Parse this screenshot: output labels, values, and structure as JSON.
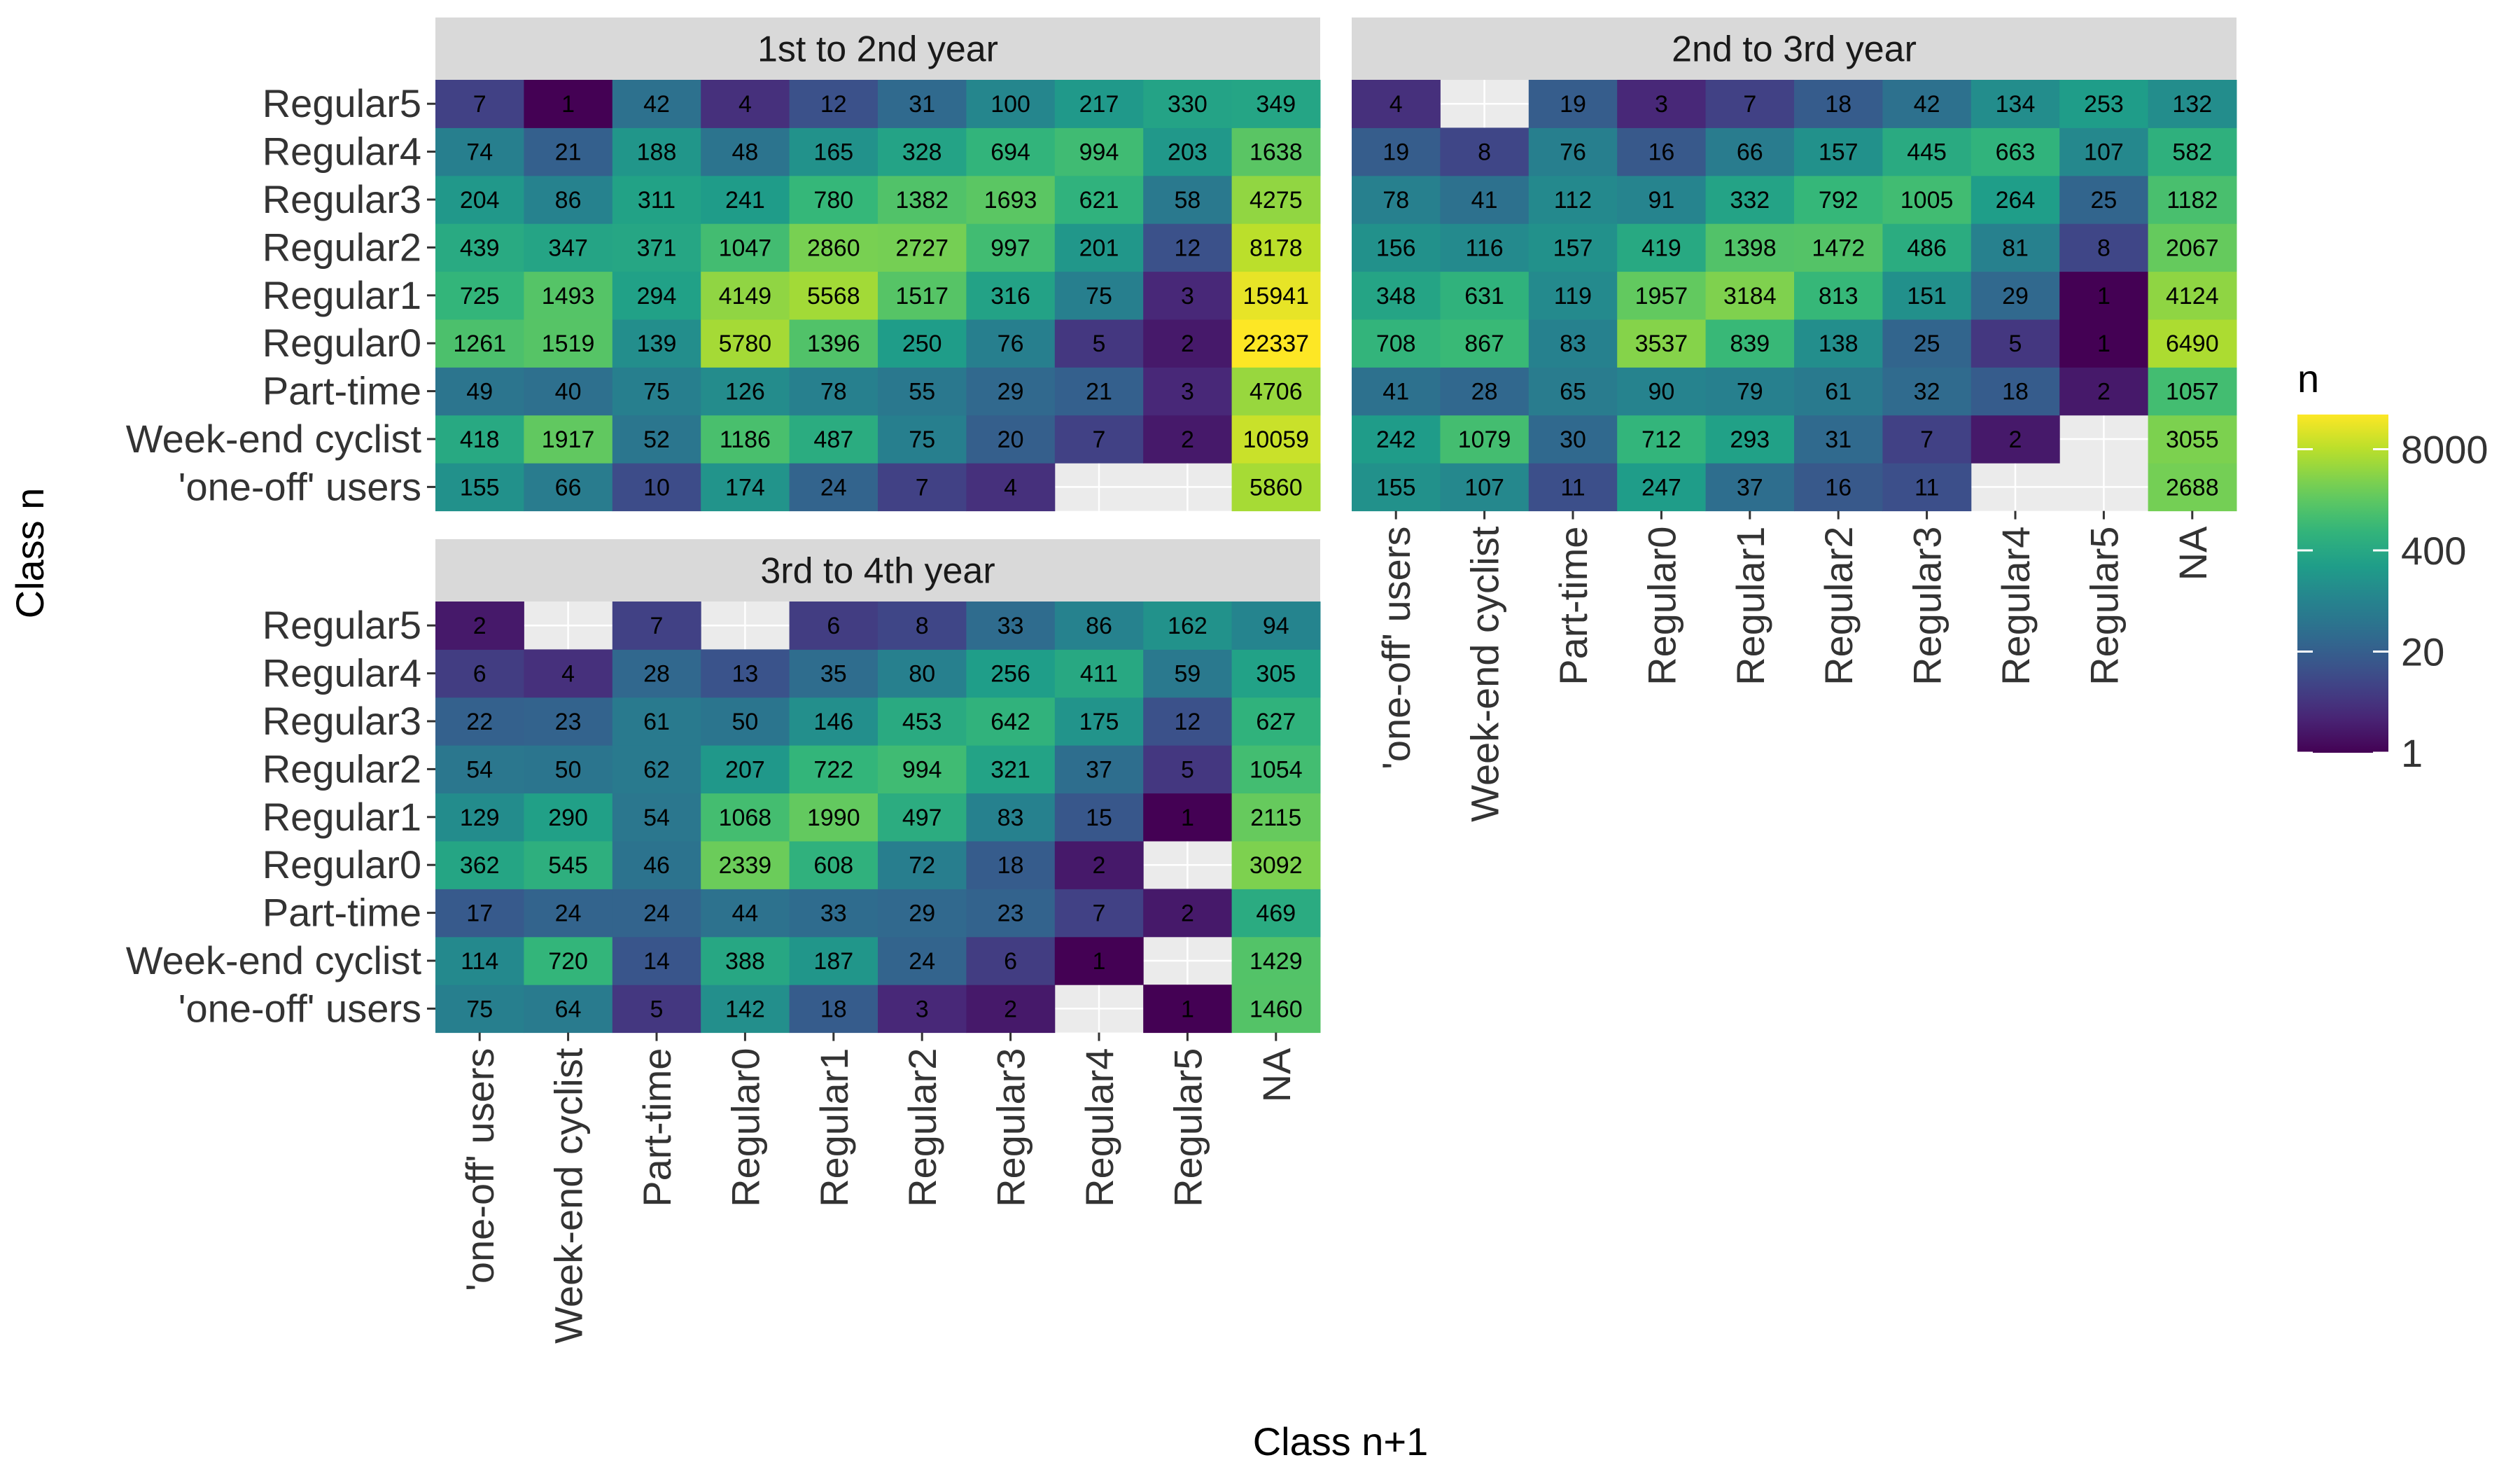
{
  "chart_data": {
    "type": "heatmap",
    "xlabel": "Class n+1",
    "ylabel": "Class n",
    "x_categories": [
      "'one-off' users",
      "Week-end cyclist",
      "Part-time",
      "Regular0",
      "Regular1",
      "Regular2",
      "Regular3",
      "Regular4",
      "Regular5",
      "NA"
    ],
    "y_categories": [
      "'one-off' users",
      "Week-end cyclist",
      "Part-time",
      "Regular0",
      "Regular1",
      "Regular2",
      "Regular3",
      "Regular4",
      "Regular5"
    ],
    "legend": {
      "title": "n",
      "scale": "log10",
      "breaks": [
        1,
        20,
        400,
        8000
      ],
      "break_labels": [
        "1",
        "20",
        "400",
        "8000"
      ],
      "range": [
        1,
        22337
      ],
      "colors": [
        "#440154",
        "#482878",
        "#3E4A89",
        "#31688E",
        "#26828E",
        "#1F9E89",
        "#35B779",
        "#6DCD59",
        "#B4DE2C",
        "#FDE725"
      ]
    },
    "panels": [
      {
        "title": "1st to 2nd year",
        "rows": [
          [
            155,
            66,
            10,
            174,
            24,
            7,
            4,
            null,
            null,
            5860
          ],
          [
            418,
            1917,
            52,
            1186,
            487,
            75,
            20,
            7,
            2,
            10059
          ],
          [
            49,
            40,
            75,
            126,
            78,
            55,
            29,
            21,
            3,
            4706
          ],
          [
            1261,
            1519,
            139,
            5780,
            1396,
            250,
            76,
            5,
            2,
            22337
          ],
          [
            725,
            1493,
            294,
            4149,
            5568,
            1517,
            316,
            75,
            3,
            15941
          ],
          [
            439,
            347,
            371,
            1047,
            2860,
            2727,
            997,
            201,
            12,
            8178
          ],
          [
            204,
            86,
            311,
            241,
            780,
            1382,
            1693,
            621,
            58,
            4275
          ],
          [
            74,
            21,
            188,
            48,
            165,
            328,
            694,
            994,
            203,
            1638
          ],
          [
            7,
            1,
            42,
            4,
            12,
            31,
            100,
            217,
            330,
            349
          ]
        ]
      },
      {
        "title": "2nd to 3rd year",
        "rows": [
          [
            155,
            107,
            11,
            247,
            37,
            16,
            11,
            null,
            null,
            2688
          ],
          [
            242,
            1079,
            30,
            712,
            293,
            31,
            7,
            2,
            null,
            3055
          ],
          [
            41,
            28,
            65,
            90,
            79,
            61,
            32,
            18,
            2,
            1057
          ],
          [
            708,
            867,
            83,
            3537,
            839,
            138,
            25,
            5,
            1,
            6490
          ],
          [
            348,
            631,
            119,
            1957,
            3184,
            813,
            151,
            29,
            1,
            4124
          ],
          [
            156,
            116,
            157,
            419,
            1398,
            1472,
            486,
            81,
            8,
            2067
          ],
          [
            78,
            41,
            112,
            91,
            332,
            792,
            1005,
            264,
            25,
            1182
          ],
          [
            19,
            8,
            76,
            16,
            66,
            157,
            445,
            663,
            107,
            582
          ],
          [
            4,
            null,
            19,
            3,
            7,
            18,
            42,
            134,
            253,
            132
          ]
        ]
      },
      {
        "title": "3rd to 4th year",
        "rows": [
          [
            75,
            64,
            5,
            142,
            18,
            3,
            2,
            null,
            1,
            1460
          ],
          [
            114,
            720,
            14,
            388,
            187,
            24,
            6,
            1,
            null,
            1429
          ],
          [
            17,
            24,
            24,
            44,
            33,
            29,
            23,
            7,
            2,
            469
          ],
          [
            362,
            545,
            46,
            2339,
            608,
            72,
            18,
            2,
            null,
            3092
          ],
          [
            129,
            290,
            54,
            1068,
            1990,
            497,
            83,
            15,
            1,
            2115
          ],
          [
            54,
            50,
            62,
            207,
            722,
            994,
            321,
            37,
            5,
            1054
          ],
          [
            22,
            23,
            61,
            50,
            146,
            453,
            642,
            175,
            12,
            627
          ],
          [
            6,
            4,
            28,
            13,
            35,
            80,
            256,
            411,
            59,
            305
          ],
          [
            2,
            null,
            7,
            null,
            6,
            8,
            33,
            86,
            162,
            94
          ]
        ]
      }
    ]
  }
}
